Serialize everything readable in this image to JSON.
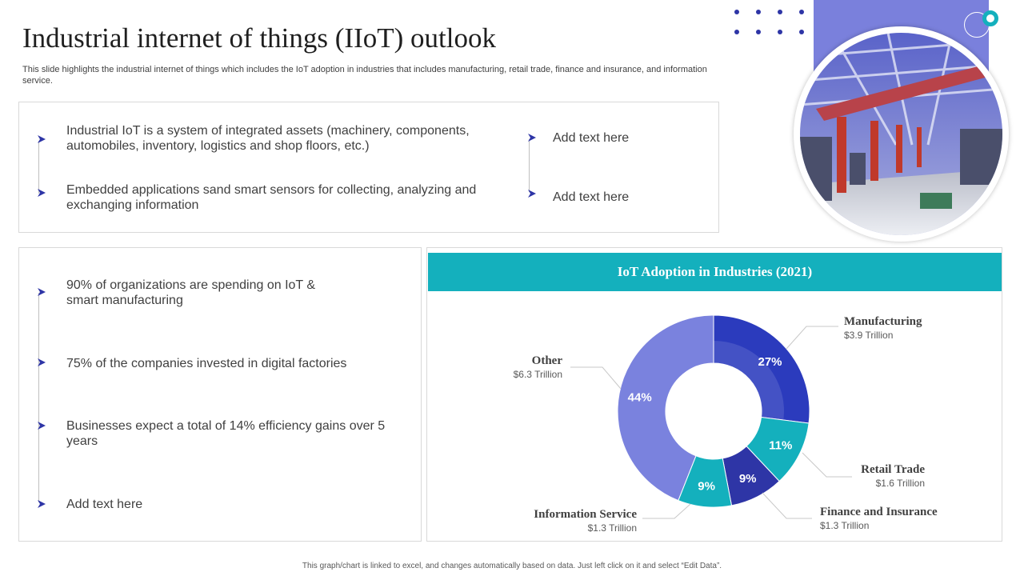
{
  "title": "Industrial internet of things (IIoT) outlook",
  "subtitle": "This slide highlights the industrial internet of things which includes the IoT adoption in industries that includes manufacturing, retail trade, finance and insurance, and information service.",
  "top_box": {
    "left_items": [
      "Industrial IoT is a system of integrated assets (machinery, components, automobiles, inventory, logistics and shop floors, etc.)",
      "Embedded applications sand smart sensors for collecting, analyzing and exchanging information"
    ],
    "right_items": [
      "Add text here",
      "Add text here"
    ]
  },
  "left_box": {
    "items": [
      "90% of organizations are spending on IoT & smart manufacturing",
      "75% of the companies invested in digital factories",
      "Businesses expect a total of 14% efficiency gains over 5 years",
      "Add text here"
    ]
  },
  "footer": "This graph/chart is linked to excel, and changes automatically based on data. Just left click on it and select “Edit Data”.",
  "colors": {
    "accent_teal": "#14b0bd",
    "accent_blue": "#2e35a6",
    "accent_periwinkle": "#7a80dc"
  },
  "chart_data": {
    "type": "pie",
    "variant": "donut",
    "title": "IoT Adoption in Industries (2021)",
    "slices": [
      {
        "name": "Manufacturing",
        "value": 27,
        "label": "27%",
        "sublabel": "$3.9 Trillion",
        "color": "#2b3bbd"
      },
      {
        "name": "Retail Trade",
        "value": 11,
        "label": "11%",
        "sublabel": "$1.6 Trillion",
        "color": "#14b0bd"
      },
      {
        "name": "Finance and Insurance",
        "value": 9,
        "label": "9%",
        "sublabel": "$1.3 Trillion",
        "color": "#2e35a6"
      },
      {
        "name": "Information Service",
        "value": 9,
        "label": "9%",
        "sublabel": "$1.3 Trillion",
        "color": "#14b0bd"
      },
      {
        "name": "Other",
        "value": 44,
        "label": "44%",
        "sublabel": "$6.3 Trillion",
        "color": "#7a82de"
      }
    ]
  }
}
